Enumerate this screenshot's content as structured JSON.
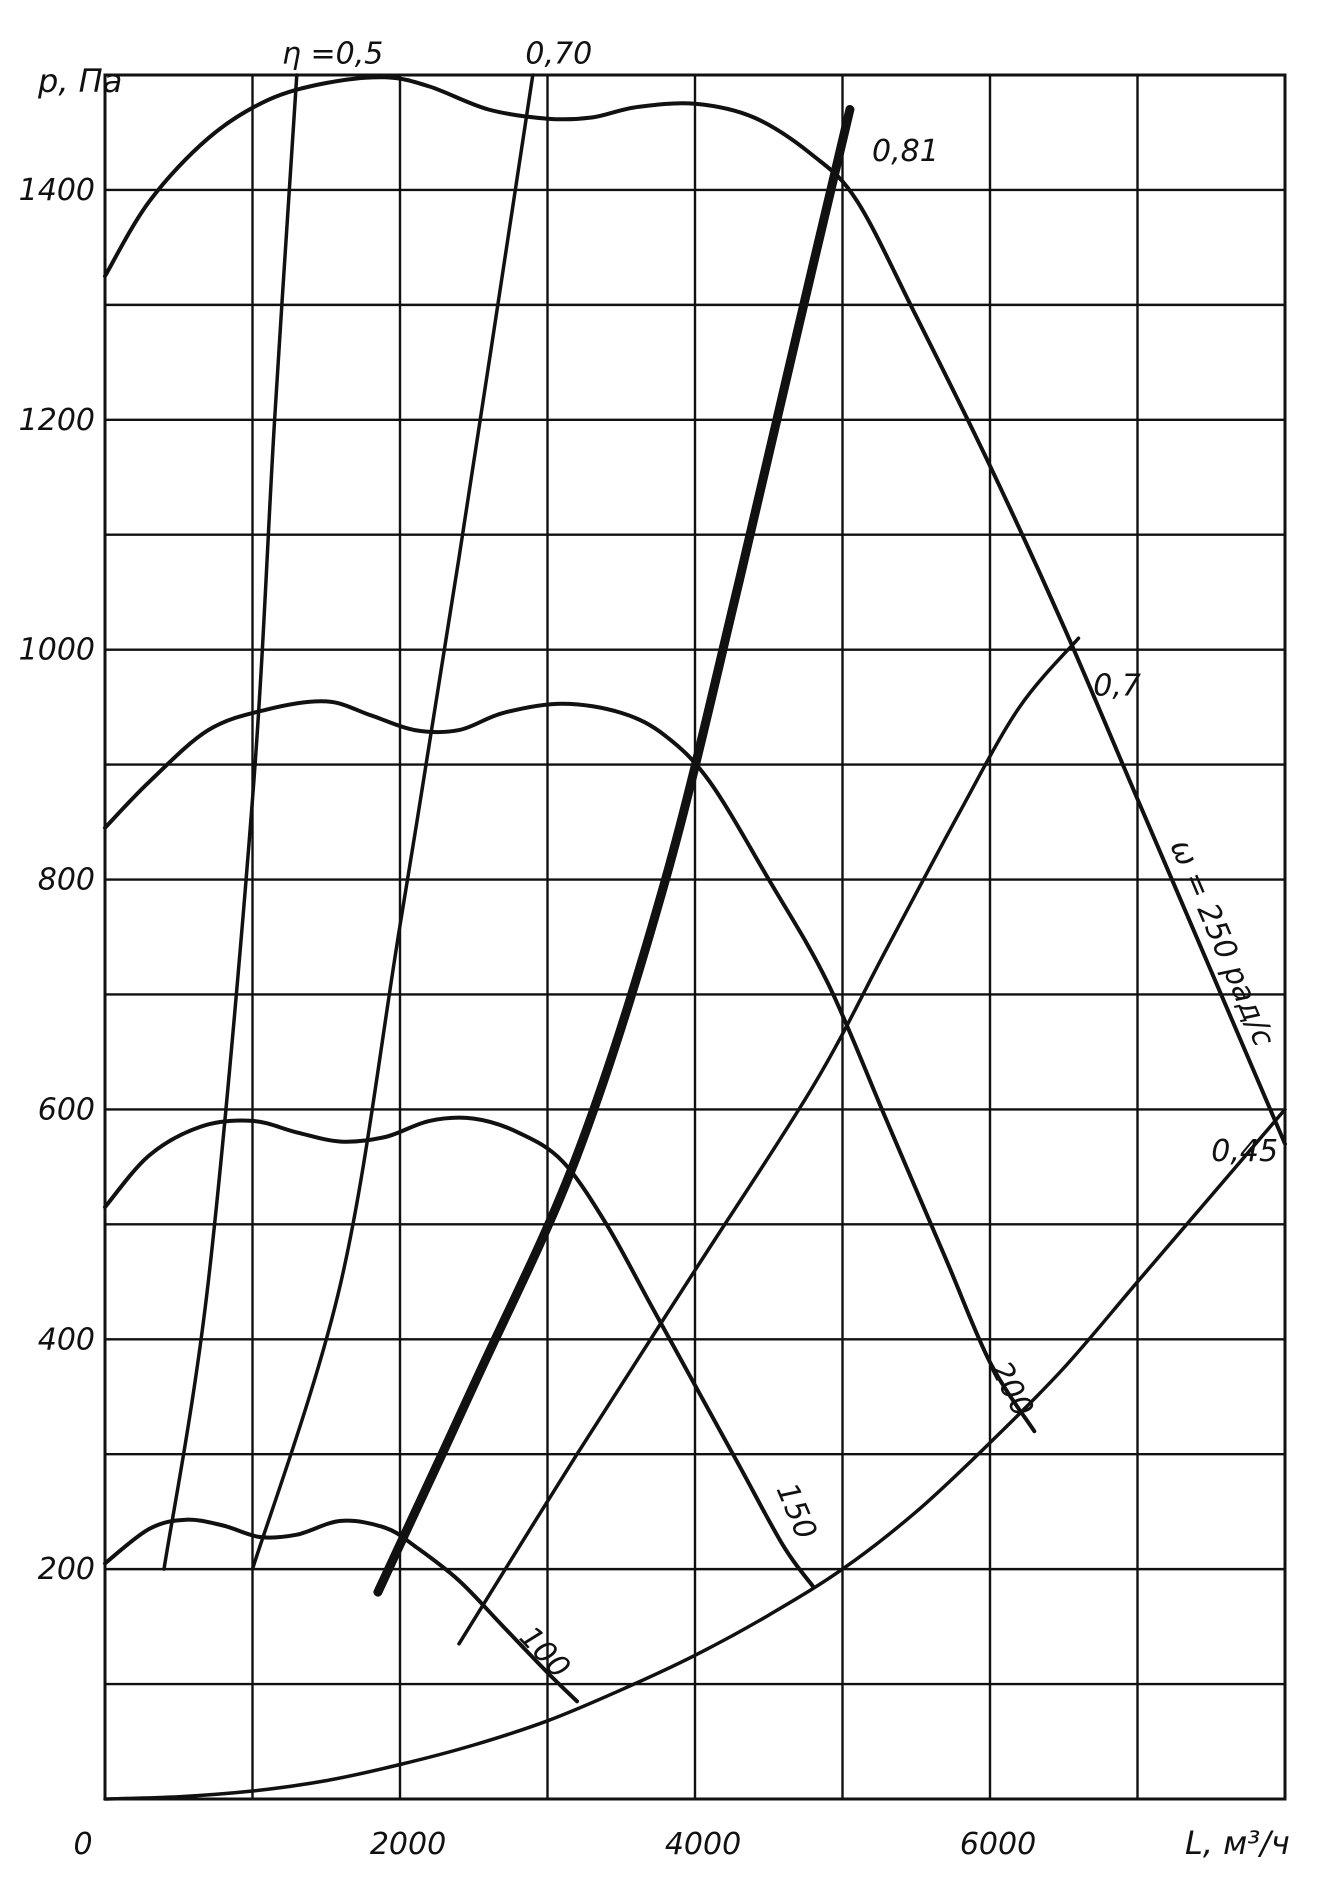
{
  "chart_data": {
    "type": "line",
    "title": "",
    "xlabel": "L, м³/ч",
    "ylabel": "p, Па",
    "x_unit": "м³/ч",
    "y_unit": "Па",
    "xlim": [
      0,
      8000
    ],
    "ylim": [
      0,
      1500
    ],
    "x_grid_step": 1000,
    "y_grid_step": 100,
    "x_tick_labels": [
      {
        "value": 0,
        "label": "0"
      },
      {
        "value": 2000,
        "label": "2000"
      },
      {
        "value": 4000,
        "label": "4000"
      },
      {
        "value": 6000,
        "label": "6000"
      }
    ],
    "y_tick_labels": [
      {
        "value": 200,
        "label": "200"
      },
      {
        "value": 400,
        "label": "400"
      },
      {
        "value": 600,
        "label": "600"
      },
      {
        "value": 800,
        "label": "800"
      },
      {
        "value": 1000,
        "label": "1000"
      },
      {
        "value": 1200,
        "label": "1200"
      },
      {
        "value": 1400,
        "label": "1400"
      }
    ],
    "grid": true,
    "speed_curves": [
      {
        "label": "100",
        "points": [
          [
            0,
            205
          ],
          [
            300,
            235
          ],
          [
            550,
            243
          ],
          [
            800,
            238
          ],
          [
            1050,
            228
          ],
          [
            1300,
            230
          ],
          [
            1600,
            242
          ],
          [
            1900,
            236
          ],
          [
            2100,
            220
          ],
          [
            2400,
            190
          ],
          [
            2700,
            150
          ],
          [
            3000,
            110
          ],
          [
            3200,
            85
          ]
        ]
      },
      {
        "label": "150",
        "points": [
          [
            0,
            515
          ],
          [
            300,
            560
          ],
          [
            650,
            585
          ],
          [
            1000,
            590
          ],
          [
            1300,
            580
          ],
          [
            1600,
            572
          ],
          [
            1900,
            576
          ],
          [
            2200,
            590
          ],
          [
            2500,
            592
          ],
          [
            2800,
            580
          ],
          [
            3100,
            555
          ],
          [
            3400,
            500
          ],
          [
            3700,
            430
          ],
          [
            4000,
            360
          ],
          [
            4300,
            290
          ],
          [
            4600,
            220
          ],
          [
            4800,
            185
          ]
        ]
      },
      {
        "label": "200",
        "points": [
          [
            0,
            845
          ],
          [
            300,
            885
          ],
          [
            700,
            930
          ],
          [
            1100,
            948
          ],
          [
            1500,
            955
          ],
          [
            1800,
            943
          ],
          [
            2100,
            930
          ],
          [
            2400,
            930
          ],
          [
            2700,
            945
          ],
          [
            3100,
            953
          ],
          [
            3500,
            945
          ],
          [
            3800,
            925
          ],
          [
            4100,
            885
          ],
          [
            4500,
            800
          ],
          [
            4900,
            710
          ],
          [
            5300,
            590
          ],
          [
            5700,
            470
          ],
          [
            6000,
            380
          ],
          [
            6300,
            320
          ]
        ]
      },
      {
        "label": "ω = 250 рад/с",
        "points": [
          [
            0,
            1325
          ],
          [
            300,
            1390
          ],
          [
            700,
            1445
          ],
          [
            1100,
            1478
          ],
          [
            1500,
            1493
          ],
          [
            1900,
            1498
          ],
          [
            2200,
            1490
          ],
          [
            2600,
            1470
          ],
          [
            3000,
            1462
          ],
          [
            3300,
            1463
          ],
          [
            3600,
            1472
          ],
          [
            4000,
            1475
          ],
          [
            4400,
            1463
          ],
          [
            4800,
            1430
          ],
          [
            5100,
            1390
          ],
          [
            5500,
            1290
          ],
          [
            6000,
            1160
          ],
          [
            6500,
            1020
          ],
          [
            7000,
            870
          ],
          [
            7500,
            720
          ],
          [
            8000,
            570
          ]
        ]
      }
    ],
    "efficiency_curves": [
      {
        "label": "η =0,5",
        "points": [
          [
            400,
            200
          ],
          [
            700,
            450
          ],
          [
            1000,
            870
          ],
          [
            1150,
            1200
          ],
          [
            1300,
            1500
          ]
        ]
      },
      {
        "label": "0,70",
        "points": [
          [
            1000,
            200
          ],
          [
            1600,
            450
          ],
          [
            2000,
            760
          ],
          [
            2400,
            1080
          ],
          [
            2900,
            1500
          ]
        ]
      },
      {
        "label": "0,81",
        "points": [
          [
            1850,
            180
          ],
          [
            2500,
            360
          ],
          [
            3200,
            560
          ],
          [
            3800,
            800
          ],
          [
            4300,
            1060
          ],
          [
            4700,
            1280
          ],
          [
            5050,
            1470
          ]
        ]
      },
      {
        "label": "0,7",
        "points": [
          [
            2400,
            135
          ],
          [
            3200,
            300
          ],
          [
            4000,
            460
          ],
          [
            4800,
            620
          ],
          [
            5300,
            740
          ],
          [
            5800,
            860
          ],
          [
            6200,
            950
          ],
          [
            6600,
            1010
          ]
        ]
      },
      {
        "label": "0,45",
        "points": [
          [
            0,
            0
          ],
          [
            500,
            2
          ],
          [
            1000,
            7
          ],
          [
            1500,
            16
          ],
          [
            2000,
            30
          ],
          [
            2500,
            47
          ],
          [
            3000,
            68
          ],
          [
            3500,
            95
          ],
          [
            4000,
            125
          ],
          [
            4500,
            160
          ],
          [
            5000,
            200
          ],
          [
            5500,
            250
          ],
          [
            6000,
            310
          ],
          [
            6500,
            375
          ],
          [
            7000,
            450
          ],
          [
            7500,
            525
          ],
          [
            8000,
            600
          ]
        ]
      }
    ]
  }
}
